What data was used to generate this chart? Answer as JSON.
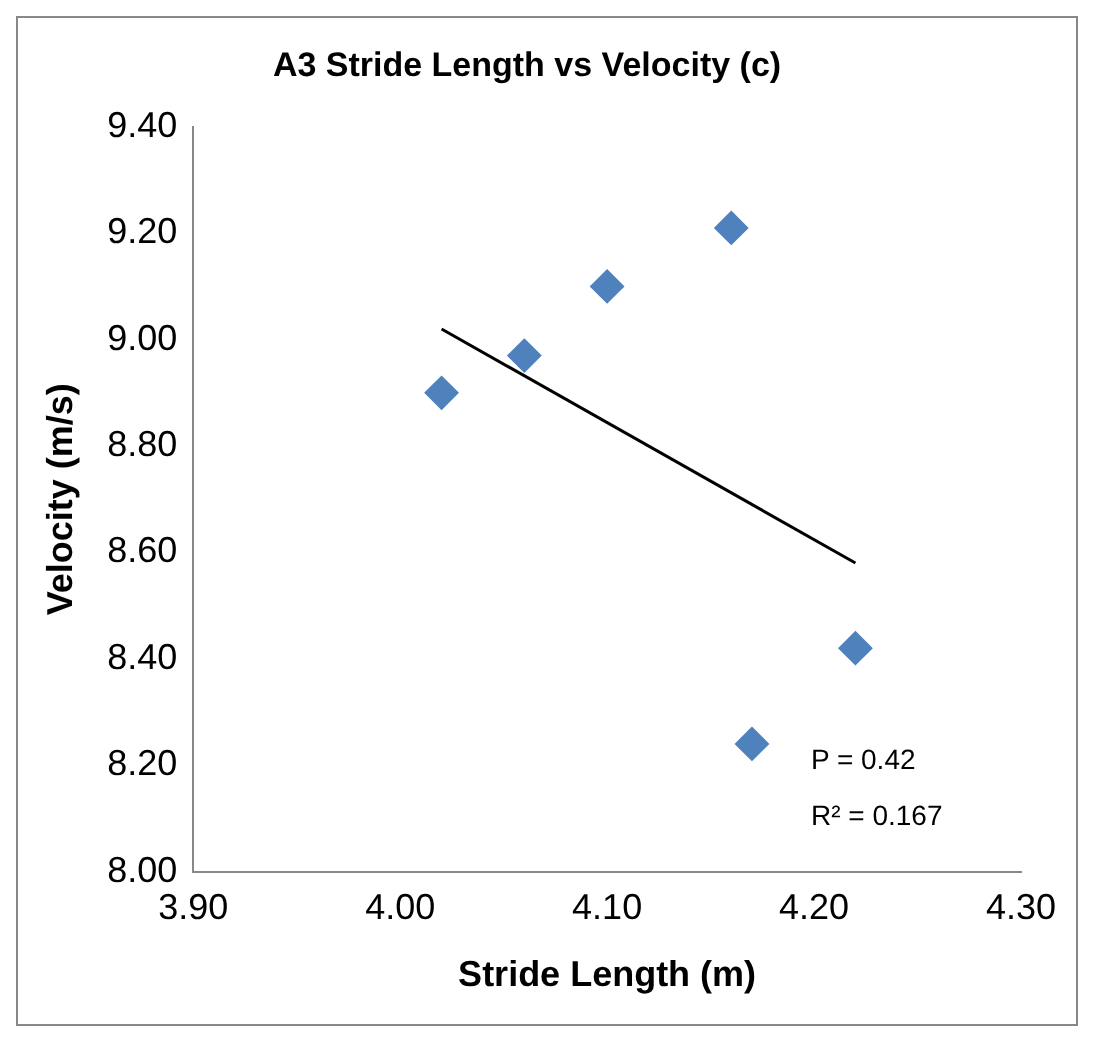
{
  "chart_data": {
    "type": "scatter",
    "title": "A3 Stride Length vs Velocity (c)",
    "xlabel": "Stride Length (m)",
    "ylabel": "Velocity (m/s)",
    "series": [
      {
        "color": "#4f81bd",
        "x": [
          4.02,
          4.06,
          4.1,
          4.16,
          4.22,
          4.17
        ],
        "values": [
          8.9,
          8.97,
          9.1,
          9.21,
          8.42,
          8.24
        ]
      },
      {
        "type": "line",
        "color": "#000000",
        "marker": "none",
        "x": [
          4.02,
          4.22
        ],
        "values": [
          9.02,
          8.58
        ]
      }
    ],
    "xlim": [
      3.9,
      4.3
    ],
    "ylim": [
      8.0,
      9.4
    ],
    "xticks": [
      {
        "value": 3.9,
        "label": "3.90"
      },
      {
        "value": 4.0,
        "label": "4.00"
      },
      {
        "value": 4.1,
        "label": "4.10"
      },
      {
        "value": 4.2,
        "label": "4.20"
      },
      {
        "value": 4.3,
        "label": "4.30"
      }
    ],
    "yticks": [
      {
        "value": 8.0,
        "label": "8.00"
      },
      {
        "value": 8.2,
        "label": "8.20"
      },
      {
        "value": 8.4,
        "label": "8.40"
      },
      {
        "value": 8.6,
        "label": "8.60"
      },
      {
        "value": 8.8,
        "label": "8.80"
      },
      {
        "value": 9.0,
        "label": "9.00"
      },
      {
        "value": 9.2,
        "label": "9.20"
      },
      {
        "value": 9.4,
        "label": "9.40"
      }
    ],
    "annotations": [
      "P = 0.42",
      "R² = 0.167"
    ],
    "marker": "diamond",
    "grid": false,
    "legend": false
  }
}
